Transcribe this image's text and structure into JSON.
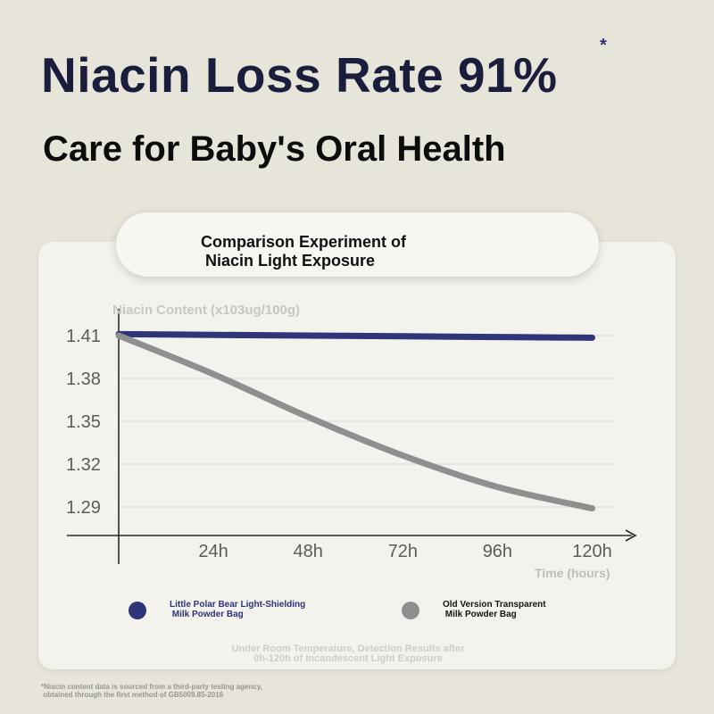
{
  "header": {
    "title": "Niacin Loss Rate 91%",
    "title_mark": "*",
    "subtitle": "Care for Baby's Oral Health"
  },
  "card": {
    "title": "Comparison Experiment of\n Niacin Light Exposure"
  },
  "chart_data": {
    "type": "line",
    "title": "Comparison Experiment of Niacin Light Exposure",
    "ylabel": "Niacin Content (x103ug/100g)",
    "xlabel": "Time (hours)",
    "x": [
      0,
      24,
      48,
      72,
      96,
      120
    ],
    "x_tick_labels": [
      "24h",
      "48h",
      "72h",
      "96h",
      "120h"
    ],
    "y_tick_labels": [
      "1.41",
      "1.38",
      "1.35",
      "1.32",
      "1.29"
    ],
    "y_ticks": [
      1.41,
      1.38,
      1.35,
      1.32,
      1.29
    ],
    "ylim": [
      1.27,
      1.42
    ],
    "xlim": [
      0,
      126
    ],
    "grid": "horizontal",
    "series": [
      {
        "name": "Little Polar Bear Light-Shielding\n Milk Powder Bag",
        "color": "#303579",
        "x": [
          0,
          24,
          48,
          72,
          96,
          120
        ],
        "values": [
          1.411,
          1.4105,
          1.41,
          1.4095,
          1.409,
          1.4085
        ]
      },
      {
        "name": "Old Version Transparent\n Milk Powder Bag",
        "color": "#8f8f8f",
        "x": [
          0,
          24,
          48,
          72,
          96,
          120
        ],
        "values": [
          1.41,
          1.383,
          1.353,
          1.326,
          1.304,
          1.289
        ]
      }
    ]
  },
  "legend": {
    "items": [
      {
        "label": "Little Polar Bear Light-Shielding\n Milk Powder Bag",
        "color": "#303579",
        "text_color": "#2f3377"
      },
      {
        "label": "Old Version Transparent\n Milk Powder Bag",
        "color": "#8f8f8f",
        "text_color": "#151515"
      }
    ]
  },
  "notes": {
    "condition": "Under Room Temperature, Detection Results after\n0h-120h of Incandescent Light Exposure",
    "source": "*Niacin content data is sourced from a third-party testing agency,\n obtained through the first method of GB5009.85-2016"
  }
}
